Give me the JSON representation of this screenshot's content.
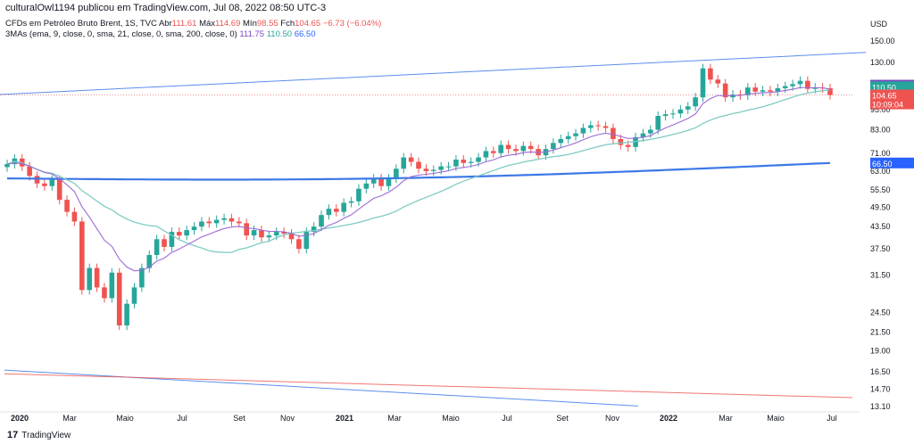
{
  "header": {
    "text": "culturalOwl1194 publicou em TradingView.com, Jul 08, 2022 08:50 UTC-3"
  },
  "legend": {
    "symbol": "CFDs em Petróleo Bruto Brent, 1S, TVC",
    "open_label": "Abr",
    "open": "111.61",
    "high_label": "Máx",
    "high": "114.69",
    "low_label": "Mín",
    "low": "98.55",
    "close_label": "Fch",
    "close": "104.65",
    "change": "−6.73 (−6.04%)",
    "ma_title": "3MAs (ema, 9, close, 0, sma, 21, close, 0, sma, 200, close, 0)",
    "ma1": "111.75",
    "ma2": "110.50",
    "ma3": "66.50"
  },
  "footer": {
    "brand": "TradingView",
    "logo": "17"
  },
  "colors": {
    "up": "#26a69a",
    "down": "#ef5350",
    "ma1": "#9c6bd4",
    "ma2": "#80cbc4",
    "ma3": "#3b78e7",
    "trend_blue": "#5b8def",
    "trend_red": "#ef5350"
  },
  "chart_data": {
    "type": "candlestick",
    "title": "CFDs em Petróleo Bruto Brent, 1S, TVC",
    "currency": "USD",
    "scale": "log",
    "y_ticks": [
      "150.00",
      "130.00",
      "110.00",
      "95.00",
      "83.00",
      "71.00",
      "63.00",
      "55.50",
      "49.50",
      "43.50",
      "37.50",
      "31.50",
      "24.50",
      "21.50",
      "19.00",
      "16.50",
      "14.70",
      "13.10"
    ],
    "x_ticks": [
      "2020",
      "Mar",
      "Maio",
      "Jul",
      "Set",
      "Nov",
      "2021",
      "Mar",
      "Maio",
      "Jul",
      "Set",
      "Nov",
      "2022",
      "Mar",
      "Maio",
      "Jul"
    ],
    "price_labels": [
      {
        "text": "111.75",
        "value": 111.75,
        "color": "#7b4bbf"
      },
      {
        "text": "110.50",
        "value": 110.5,
        "color": "#26a69a"
      },
      {
        "text": "104.65",
        "value": 104.65,
        "color": "#ef5350"
      },
      {
        "text": "10:09:04",
        "value": 98.6,
        "color": "#ef5350"
      },
      {
        "text": "66.50",
        "value": 66.5,
        "color": "#2962ff"
      }
    ],
    "last_price": 104.65,
    "candles_close": [
      66,
      68.5,
      65,
      61,
      58,
      57,
      59.5,
      52,
      48,
      45,
      28.5,
      33,
      29,
      27,
      32,
      22.5,
      26,
      29,
      33,
      36,
      40,
      38,
      42,
      41,
      42.5,
      43.5,
      45,
      44.5,
      45.5,
      46,
      45,
      44.5,
      41,
      42.5,
      40.5,
      41,
      42,
      41.5,
      40,
      37.5,
      42,
      43.5,
      47,
      49,
      48,
      51,
      51.5,
      56,
      58,
      60,
      57,
      60,
      64,
      69,
      67,
      64,
      63,
      63.5,
      65,
      65,
      68,
      66.5,
      67,
      69,
      72,
      71,
      75,
      73,
      72,
      74.5,
      73,
      70,
      73,
      76,
      78,
      79.5,
      81,
      84,
      85.5,
      85,
      84,
      78,
      75,
      74,
      79,
      81,
      83,
      91,
      92,
      92.5,
      95,
      97,
      103,
      125,
      116,
      113,
      103,
      105,
      104.5,
      110,
      107,
      108,
      107,
      109.5,
      111,
      112.5,
      115,
      109,
      110,
      109.5,
      104.65
    ],
    "ma1_ema9": "ema 9",
    "ma2_sma21": "sma 21",
    "ma3_sma200": "sma 200"
  }
}
